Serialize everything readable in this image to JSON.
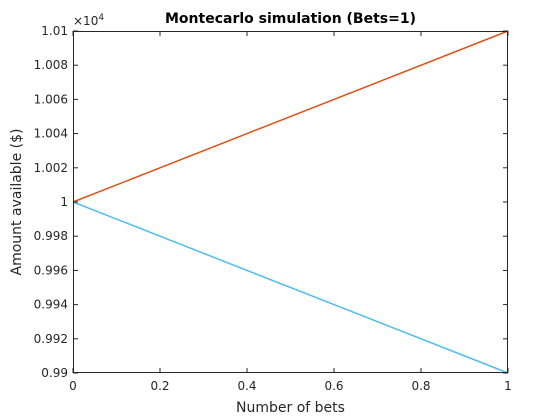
{
  "chart_data": {
    "type": "line",
    "title": "Montecarlo simulation (Bets=1)",
    "xlabel": "Number of bets",
    "ylabel": "Amount available ($)",
    "y_multiplier_label": "×10",
    "y_multiplier_exponent": "4",
    "xlim": [
      0,
      1
    ],
    "ylim": [
      9900,
      10100
    ],
    "x_ticks": [
      0,
      0.2,
      0.4,
      0.6,
      0.8,
      1
    ],
    "x_tick_labels": [
      "0",
      "0.2",
      "0.4",
      "0.6",
      "0.8",
      "1"
    ],
    "y_ticks": [
      9900,
      9920,
      9940,
      9960,
      9980,
      10000,
      10020,
      10040,
      10060,
      10080,
      10100
    ],
    "y_tick_labels": [
      "0.99",
      "0.992",
      "0.994",
      "0.996",
      "0.998",
      "1",
      "1.002",
      "1.004",
      "1.006",
      "1.008",
      "1.01"
    ],
    "grid": false,
    "series": [
      {
        "color": "#D95319",
        "x": [
          0,
          1
        ],
        "y": [
          10000,
          10100
        ]
      },
      {
        "color": "#4DBEEE",
        "x": [
          0,
          1
        ],
        "y": [
          10000,
          9900
        ]
      }
    ]
  }
}
